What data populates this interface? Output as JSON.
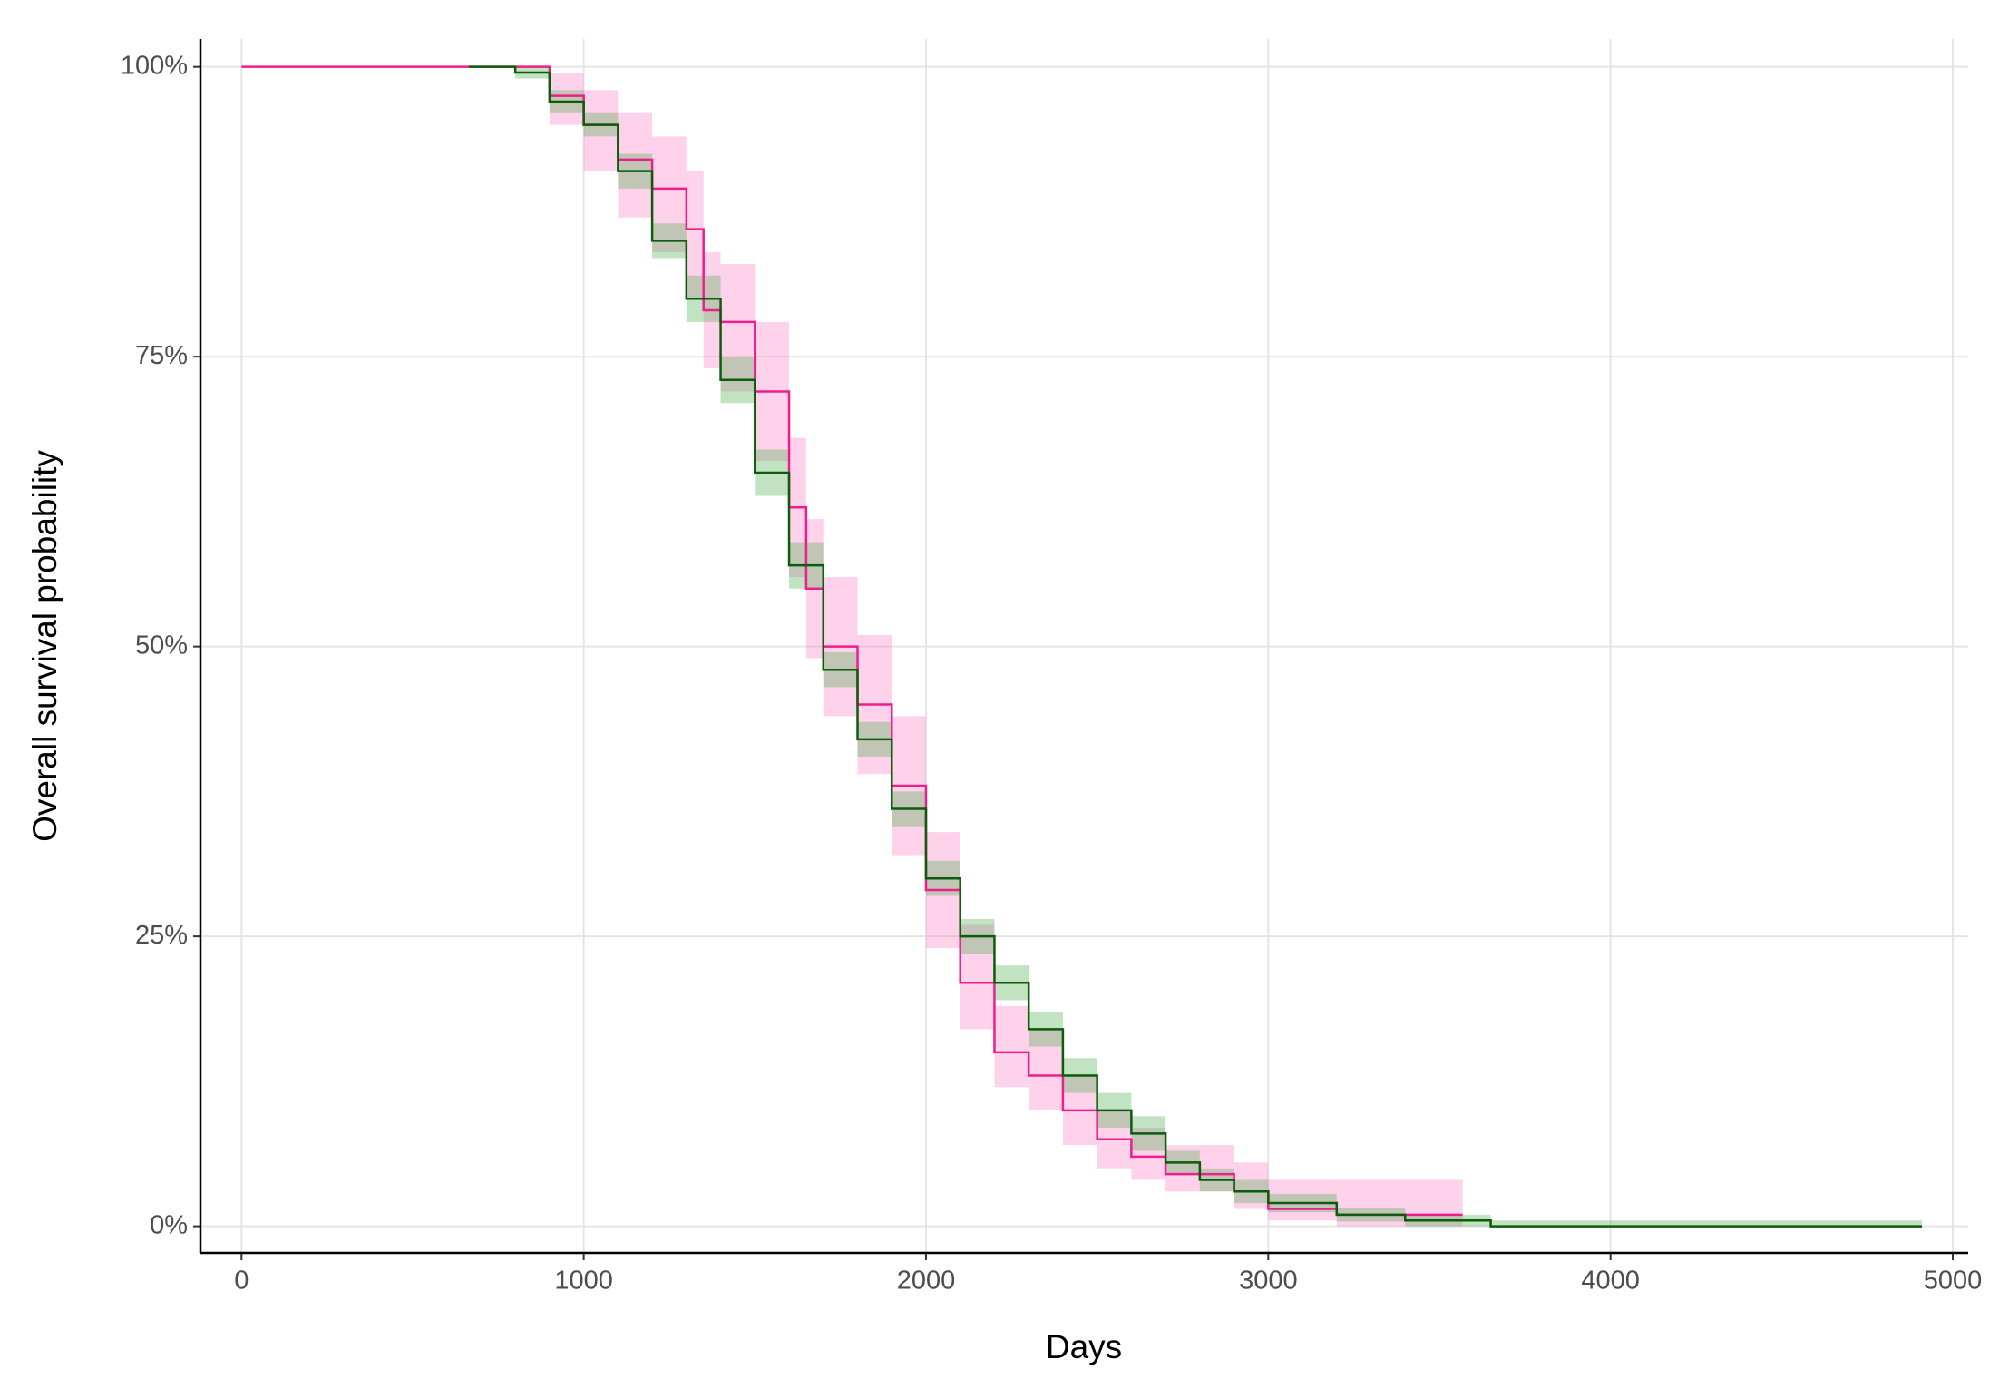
{
  "chart_data": {
    "type": "step",
    "x_label": "Days",
    "y_label": "Overall survival probability",
    "xlim": [
      -120,
      5045
    ],
    "ylim": [
      -2.3,
      102.4
    ],
    "xticks": [
      0,
      1000,
      2000,
      3000,
      4000,
      5000
    ],
    "yticks": [
      {
        "value": 0,
        "label": "0%"
      },
      {
        "value": 25,
        "label": "25%"
      },
      {
        "value": 50,
        "label": "50%"
      },
      {
        "value": 75,
        "label": "75%"
      },
      {
        "value": 100,
        "label": "100%"
      }
    ],
    "grid": true,
    "series": [
      {
        "color": "#ec1f8b",
        "band_color": "#ff7fc8",
        "x": [
          0,
          845,
          900,
          1000,
          1100,
          1200,
          1300,
          1350,
          1400,
          1500,
          1600,
          1650,
          1700,
          1800,
          1900,
          2000,
          2100,
          2200,
          2300,
          2400,
          2500,
          2600,
          2700,
          2900,
          3000,
          3200,
          3568
        ],
        "values": [
          100,
          100,
          97.5,
          95,
          92,
          89.5,
          86,
          79,
          78,
          72,
          62,
          55,
          50,
          45,
          38,
          29,
          21,
          15,
          13,
          10,
          7.5,
          6,
          4.5,
          3,
          1.5,
          1,
          1
        ],
        "lower": [
          100,
          100,
          95,
          91,
          87,
          84,
          80,
          74,
          72,
          66,
          56,
          49,
          44,
          39,
          32,
          24,
          17,
          12,
          10,
          7,
          5,
          4,
          3,
          1.5,
          0.5,
          0,
          0
        ],
        "upper": [
          100,
          100,
          99.5,
          98,
          96,
          94,
          91,
          84,
          83,
          78,
          68,
          61,
          56,
          51,
          44,
          34,
          26,
          19,
          17,
          13,
          10,
          8.5,
          7,
          5.5,
          4,
          4,
          4
        ]
      },
      {
        "color": "#0b5c0b",
        "band_color": "#4caf50",
        "x": [
          664,
          800,
          900,
          1000,
          1100,
          1200,
          1300,
          1400,
          1500,
          1600,
          1700,
          1800,
          1900,
          2000,
          2100,
          2200,
          2300,
          2400,
          2500,
          2600,
          2700,
          2800,
          2900,
          3000,
          3200,
          3400,
          3650,
          3946,
          4910
        ],
        "values": [
          100,
          99.5,
          97,
          95,
          91,
          85,
          80,
          73,
          65,
          57,
          48,
          42,
          36,
          30,
          25,
          21,
          17,
          13,
          10,
          8,
          5.5,
          4,
          3,
          2,
          1,
          0.5,
          0,
          0,
          0
        ],
        "lower": [
          100,
          99,
          96,
          94,
          89.5,
          83.5,
          78,
          71,
          63,
          55,
          46.5,
          40.5,
          34.5,
          28.5,
          23.5,
          19.5,
          15.5,
          11.5,
          8.5,
          6.5,
          4.5,
          3,
          2,
          1.2,
          0.4,
          0,
          0,
          0,
          0
        ],
        "upper": [
          100,
          100,
          98,
          96,
          92.5,
          86.5,
          82,
          75,
          67,
          59,
          49.5,
          43.5,
          37.5,
          31.5,
          26.5,
          22.5,
          18.5,
          14.5,
          11.5,
          9.5,
          6.5,
          5,
          4,
          2.8,
          1.6,
          1,
          0.5,
          0.5,
          0
        ]
      }
    ]
  }
}
